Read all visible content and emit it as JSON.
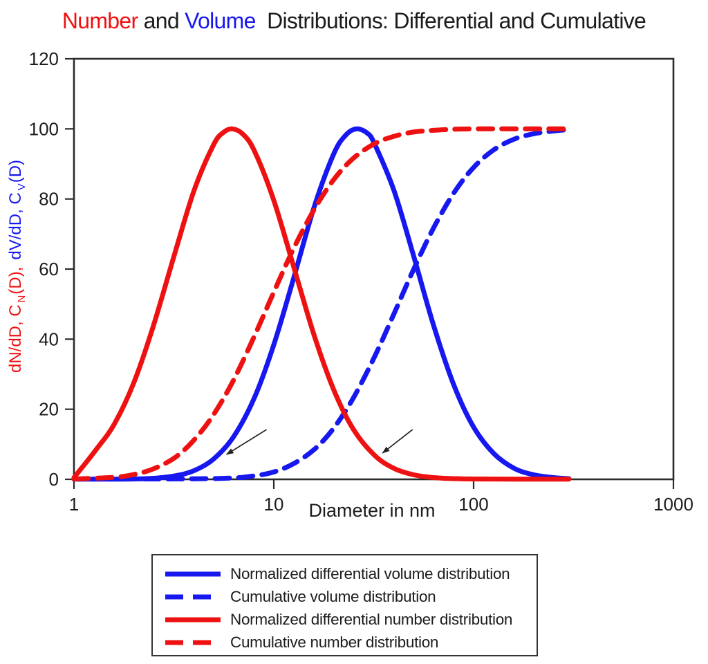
{
  "title": {
    "segments": [
      {
        "text": "Number",
        "color": "#ee1111"
      },
      {
        "text": " and ",
        "color": "#1c1c1c"
      },
      {
        "text": "Volume",
        "color": "#1717ef"
      },
      {
        "text": "  Distributions: Differential and Cumulative",
        "color": "#1c1c1c"
      }
    ]
  },
  "colors": {
    "red": "#ee1111",
    "blue": "#1717ef",
    "axis": "#2b2b2b",
    "text": "#1c1c1c"
  },
  "axes": {
    "x": {
      "label": "Diameter in nm",
      "scale": "log",
      "range": [
        1,
        1000
      ],
      "ticks": [
        1,
        10,
        100,
        1000
      ]
    },
    "y": {
      "range": [
        0,
        120
      ],
      "ticks": [
        0,
        20,
        40,
        60,
        80,
        100,
        120
      ],
      "label_red_main": "dN/dD, C",
      "label_red_sub": "N",
      "label_red_end": "(D),",
      "label_blue_main": "dV/dD, C",
      "label_blue_sub": "V",
      "label_blue_end": "(D)"
    }
  },
  "legend": {
    "items": [
      {
        "label": "Normalized differential volume distribution",
        "color": "blue",
        "style": "solid"
      },
      {
        "label": "Cumulative volume distribution",
        "color": "blue",
        "style": "dashed"
      },
      {
        "label": "Normalized differential number distribution",
        "color": "red",
        "style": "solid"
      },
      {
        "label": "Cumulative number distribution",
        "color": "red",
        "style": "dashed"
      }
    ],
    "position": "bottom"
  },
  "annotations": {
    "arrows": [
      {
        "from": [
          9.2,
          14.2
        ],
        "to": [
          5.8,
          7.1
        ]
      },
      {
        "from": [
          49.5,
          14.2
        ],
        "to": [
          35,
          7.5
        ]
      }
    ]
  },
  "chart_data": {
    "type": "line",
    "title": "Number and Volume Distributions: Differential and Cumulative",
    "xlabel": "Diameter in nm",
    "ylabel": "dN/dD, C_N(D), dV/dD, C_V(D)",
    "x_scale": "log",
    "x_range": [
      1,
      1000
    ],
    "y_range": [
      0,
      120
    ],
    "grid": false,
    "legend_position": "bottom",
    "series": [
      {
        "key": "diff-volume",
        "name": "Normalized differential volume distribution",
        "color": "blue",
        "dash": false,
        "points": [
          [
            1,
            0.05
          ],
          [
            1.6,
            0.05
          ],
          [
            2,
            0.1
          ],
          [
            2.5,
            0.3
          ],
          [
            3.2,
            1.0
          ],
          [
            4,
            2.5
          ],
          [
            5,
            5.8
          ],
          [
            6.3,
            12.2
          ],
          [
            8,
            23.3
          ],
          [
            10,
            38.4
          ],
          [
            12.6,
            57.6
          ],
          [
            16,
            78.1
          ],
          [
            20,
            93.0
          ],
          [
            23,
            98.3
          ],
          [
            26,
            100
          ],
          [
            29.5,
            98.7
          ],
          [
            32,
            95.6
          ],
          [
            40,
            82.3
          ],
          [
            50,
            63.9
          ],
          [
            63,
            44.0
          ],
          [
            80,
            26.6
          ],
          [
            100,
            14.9
          ],
          [
            126,
            7.4
          ],
          [
            160,
            3.1
          ],
          [
            200,
            1.3
          ],
          [
            250,
            0.5
          ],
          [
            300,
            0.2
          ]
        ]
      },
      {
        "key": "cum-volume",
        "name": "Cumulative volume distribution",
        "color": "blue",
        "dash": true,
        "points": [
          [
            1,
            0.1
          ],
          [
            2,
            0.1
          ],
          [
            4,
            0.15
          ],
          [
            6.3,
            0.4
          ],
          [
            8,
            1.0
          ],
          [
            10,
            2.1
          ],
          [
            12.6,
            4.5
          ],
          [
            16,
            8.6
          ],
          [
            20,
            14.7
          ],
          [
            25,
            23.2
          ],
          [
            32,
            35.1
          ],
          [
            40,
            47.3
          ],
          [
            50,
            59.8
          ],
          [
            63,
            71.7
          ],
          [
            80,
            81.9
          ],
          [
            100,
            89.0
          ],
          [
            126,
            94.0
          ],
          [
            160,
            97.1
          ],
          [
            200,
            98.6
          ],
          [
            250,
            99.4
          ],
          [
            300,
            99.8
          ]
        ]
      },
      {
        "key": "diff-number",
        "name": "Normalized differential number distribution",
        "color": "red",
        "dash": false,
        "points": [
          [
            1,
            0.5
          ],
          [
            1.3,
            8.7
          ],
          [
            1.6,
            16.0
          ],
          [
            2,
            27.8
          ],
          [
            2.5,
            43.9
          ],
          [
            3.2,
            64.6
          ],
          [
            4,
            82.6
          ],
          [
            5,
            95.5
          ],
          [
            5.6,
            99.0
          ],
          [
            6.2,
            100
          ],
          [
            7,
            98.5
          ],
          [
            8,
            93.7
          ],
          [
            10,
            79.6
          ],
          [
            12.6,
            60.5
          ],
          [
            16,
            40.7
          ],
          [
            20,
            25.4
          ],
          [
            25,
            14.3
          ],
          [
            32,
            6.8
          ],
          [
            40,
            3.1
          ],
          [
            50,
            1.3
          ],
          [
            63,
            0.5
          ],
          [
            80,
            0.2
          ],
          [
            100,
            0.1
          ],
          [
            160,
            0.05
          ],
          [
            300,
            0.05
          ]
        ]
      },
      {
        "key": "cum-number",
        "name": "Cumulative number distribution",
        "color": "red",
        "dash": true,
        "points": [
          [
            1,
            0.1
          ],
          [
            1.6,
            0.6
          ],
          [
            2,
            1.4
          ],
          [
            2.5,
            3.0
          ],
          [
            3.2,
            6.2
          ],
          [
            4,
            11.3
          ],
          [
            5,
            18.5
          ],
          [
            6.3,
            28.4
          ],
          [
            8,
            40.9
          ],
          [
            10,
            53.4
          ],
          [
            12.6,
            66.0
          ],
          [
            16,
            77.2
          ],
          [
            20,
            85.6
          ],
          [
            25,
            91.6
          ],
          [
            32,
            95.8
          ],
          [
            40,
            97.9
          ],
          [
            50,
            99.1
          ],
          [
            63,
            99.6
          ],
          [
            80,
            99.9
          ],
          [
            100,
            100
          ],
          [
            300,
            100
          ]
        ]
      }
    ]
  }
}
